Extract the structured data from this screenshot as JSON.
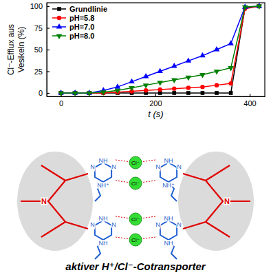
{
  "chart_data": {
    "type": "line",
    "y_label": [
      "Cl⁻-Efflux aus",
      "Vesikeln (%)"
    ],
    "x_label": "t (s)",
    "x": [
      0,
      30,
      60,
      90,
      120,
      150,
      180,
      210,
      240,
      270,
      300,
      330,
      360,
      390,
      420
    ],
    "xlim": [
      -30,
      432
    ],
    "xticks": [
      0,
      200,
      400
    ],
    "ylim": [
      -4,
      104
    ],
    "yticks": [
      0,
      25,
      50,
      75,
      100
    ],
    "legend": "upper-left",
    "series": [
      {
        "name": "Grundlinie",
        "color": "#000000",
        "marker": "square",
        "values": [
          0,
          0,
          0,
          0,
          0,
          0,
          0,
          0,
          0,
          0,
          0,
          0,
          0,
          98,
          100
        ]
      },
      {
        "name": "pH=5.8",
        "color": "#ff0000",
        "marker": "circle",
        "values": [
          0,
          0,
          0,
          0,
          1,
          2,
          3,
          4,
          5,
          6,
          7,
          9,
          11,
          97,
          100
        ]
      },
      {
        "name": "pH=7.0",
        "color": "#0000ff",
        "marker": "triangle-up",
        "values": [
          0,
          0,
          0,
          3,
          7,
          13,
          19,
          25,
          31,
          37,
          43,
          50,
          57,
          99,
          100
        ]
      },
      {
        "name": "pH=8.0",
        "color": "#008000",
        "marker": "triangle-down",
        "values": [
          0,
          0,
          0,
          1,
          3,
          6,
          9,
          12,
          15,
          18,
          21,
          25,
          29,
          99,
          100
        ]
      }
    ]
  },
  "diagram": {
    "rings": [
      {
        "labels": [
          "NH",
          "N",
          "NH⁺",
          "N"
        ]
      },
      {
        "labels": [
          "NH",
          "N",
          "NH⁺",
          "N"
        ]
      },
      {
        "labels": [
          "NH",
          "N",
          "NH",
          "N"
        ]
      },
      {
        "labels": [
          "NH",
          "N",
          "NH",
          "N"
        ]
      }
    ],
    "anions": [
      "Cl⁻",
      "Cl⁻",
      "Cl⁻",
      "Cl⁻"
    ],
    "cage_labels": [
      "N",
      "N"
    ],
    "caption": "aktiver H⁺/Cl⁻-Cotransporter"
  }
}
